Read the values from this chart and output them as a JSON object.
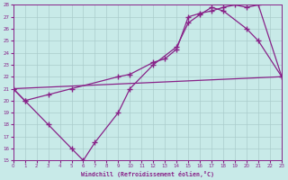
{
  "xlabel": "Windchill (Refroidissement éolien,°C)",
  "background_color": "#c8eae8",
  "line_color": "#882288",
  "grid_color": "#aacccc",
  "xlim": [
    0,
    23
  ],
  "ylim": [
    15,
    28
  ],
  "xticks": [
    0,
    1,
    2,
    3,
    4,
    5,
    6,
    7,
    8,
    9,
    10,
    11,
    12,
    13,
    14,
    15,
    16,
    17,
    18,
    19,
    20,
    21,
    22,
    23
  ],
  "yticks": [
    15,
    16,
    17,
    18,
    19,
    20,
    21,
    22,
    23,
    24,
    25,
    26,
    27,
    28
  ],
  "line1_x": [
    0,
    1,
    3,
    5,
    6,
    7,
    9,
    10,
    12,
    14,
    15,
    16,
    17,
    18,
    20,
    21,
    23
  ],
  "line1_y": [
    21.0,
    20.0,
    18.0,
    16.0,
    15.0,
    16.5,
    19.0,
    21.0,
    23.0,
    24.5,
    26.5,
    27.2,
    27.8,
    27.5,
    26.0,
    25.0,
    22.0
  ],
  "line2_x": [
    0,
    1,
    3,
    5,
    9,
    10,
    12,
    13,
    14,
    15,
    16,
    17,
    18,
    19,
    20,
    21,
    23
  ],
  "line2_y": [
    21.0,
    20.0,
    20.5,
    21.0,
    22.0,
    22.2,
    23.2,
    23.5,
    24.3,
    27.0,
    27.3,
    27.5,
    27.8,
    28.0,
    27.8,
    28.0,
    22.0
  ],
  "line3_x": [
    0,
    23
  ],
  "line3_y": [
    21.0,
    22.0
  ]
}
